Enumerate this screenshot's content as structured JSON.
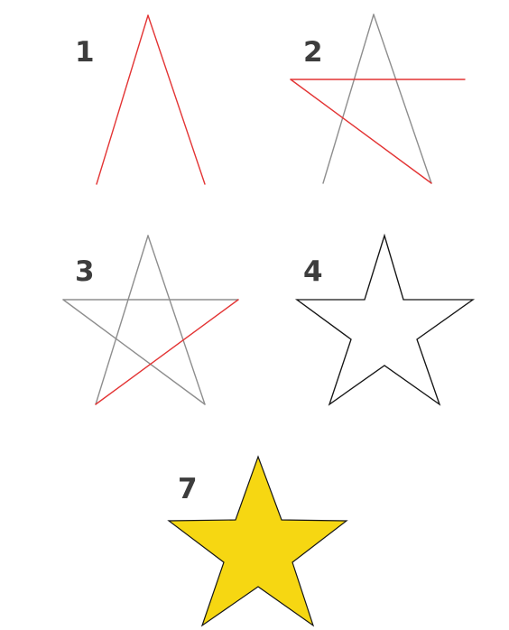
{
  "diagram": {
    "steps": [
      {
        "label": "1"
      },
      {
        "label": "2"
      },
      {
        "label": "3"
      },
      {
        "label": "4"
      },
      {
        "label": "7"
      }
    ],
    "colors": {
      "background": "#ffffff",
      "number_text": "#3d3d3d",
      "new_line": "#e33434",
      "existing_line": "#8e8e8e",
      "outline": "#151515",
      "star_fill": "#f6d712",
      "star_stroke": "#151515"
    }
  }
}
